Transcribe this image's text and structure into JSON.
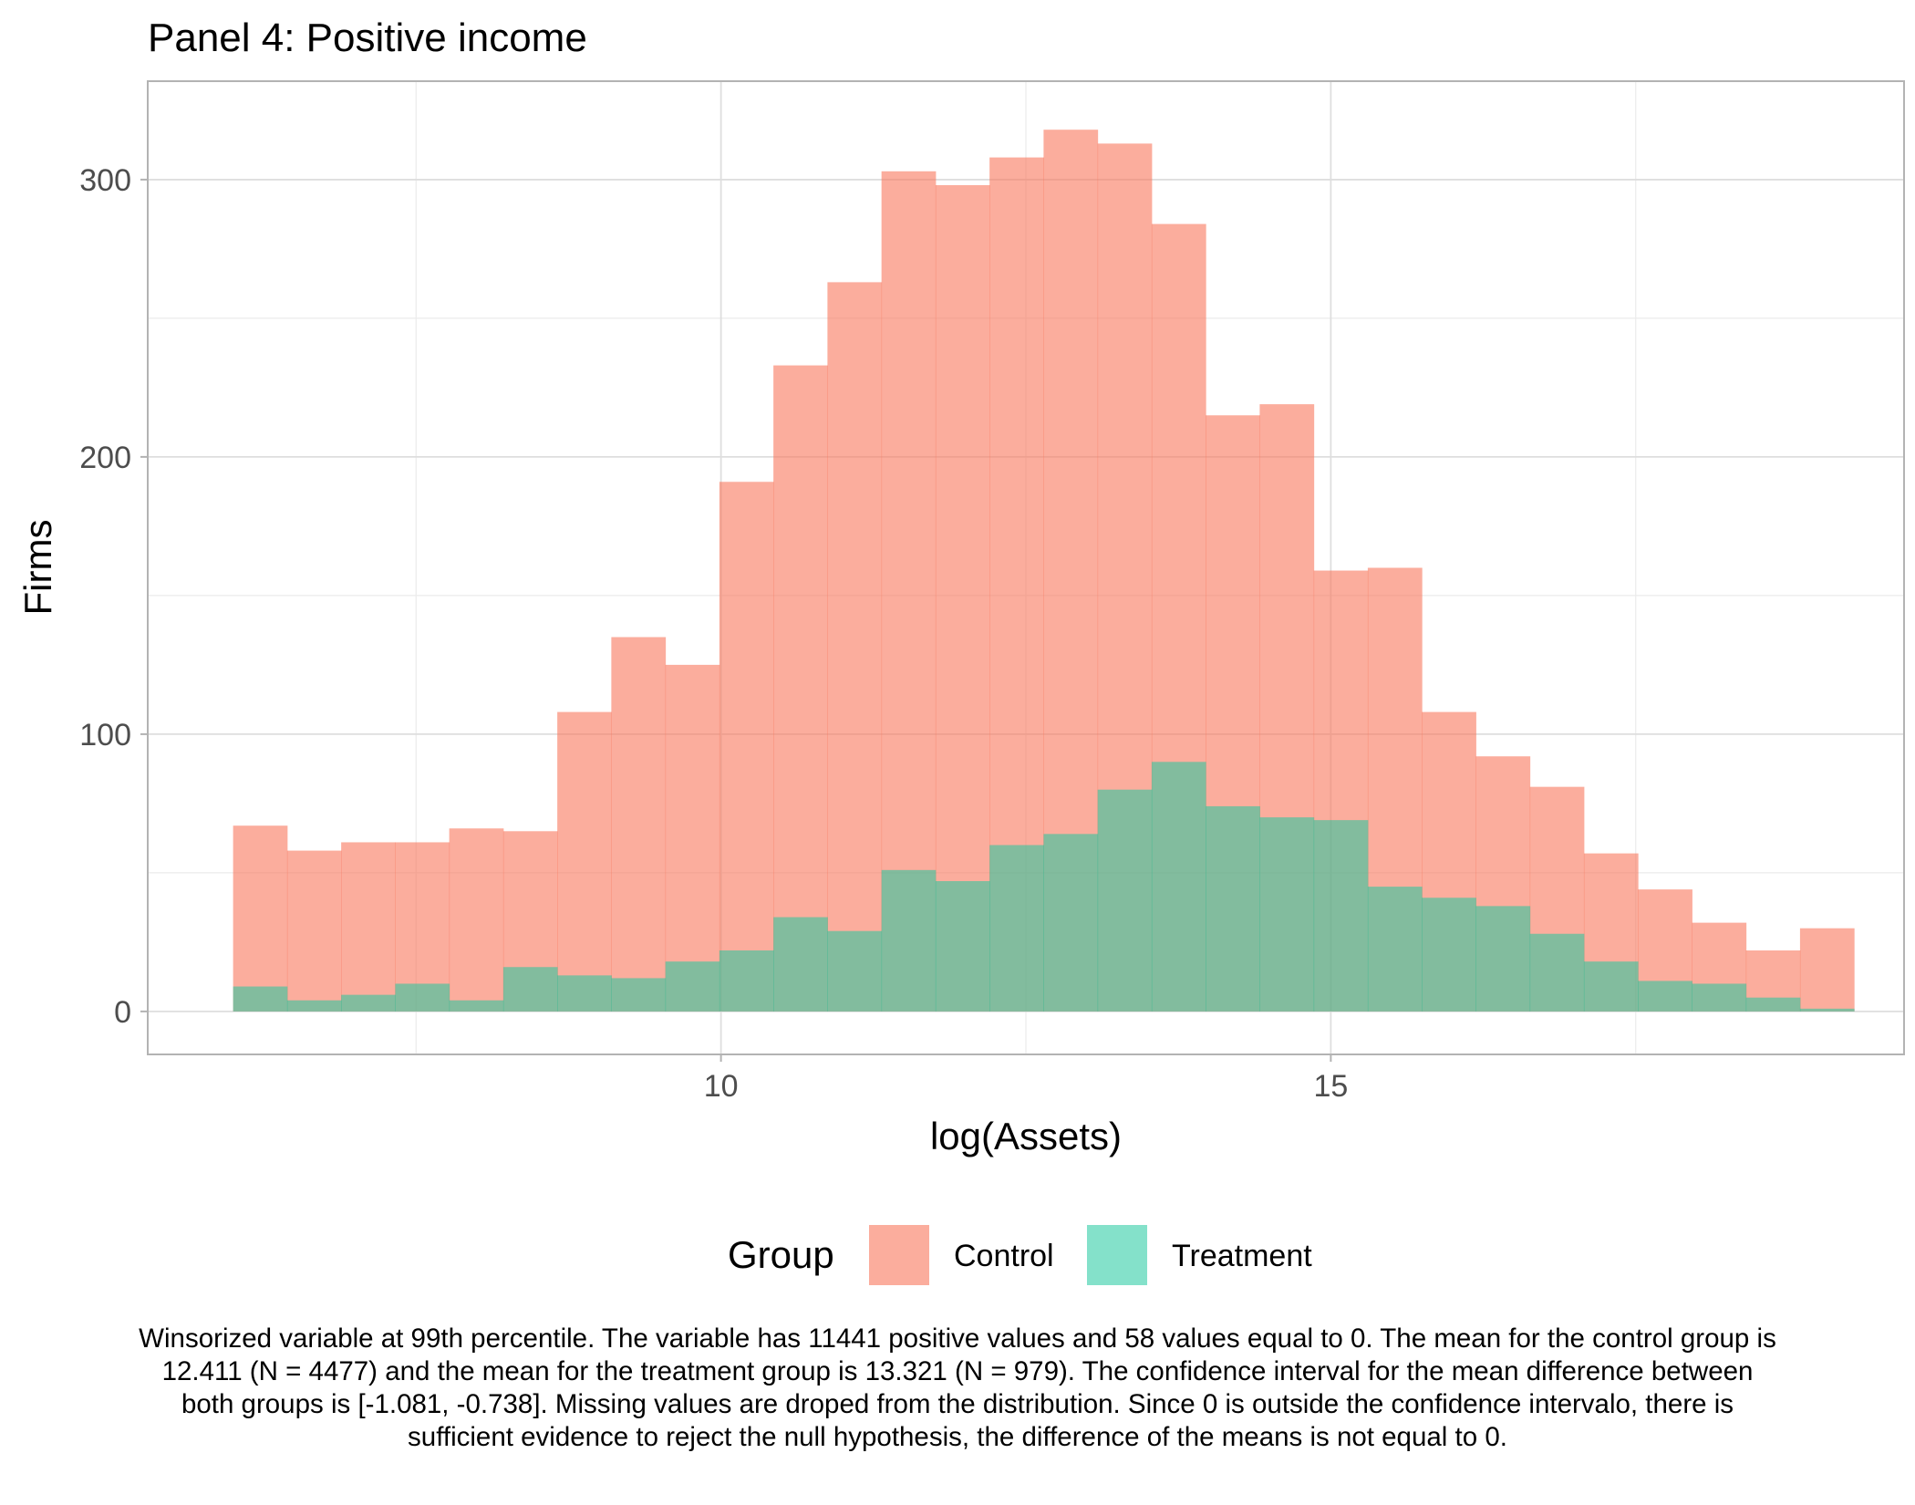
{
  "chart_data": {
    "type": "bar",
    "title": "Panel 4: Positive income",
    "xlabel": "log(Assets)",
    "ylabel": "Firms",
    "xlim": [
      5.3,
      19.7
    ],
    "ylim": [
      -15.5,
      335.5
    ],
    "x_ticks": [
      10,
      15
    ],
    "y_ticks": [
      0,
      100,
      200,
      300
    ],
    "bin_width": 0.443,
    "bin_starts": [
      6.0,
      6.443,
      6.886,
      7.329,
      7.772,
      8.215,
      8.658,
      9.101,
      9.544,
      9.987,
      10.43,
      10.873,
      11.316,
      11.759,
      12.202,
      12.645,
      13.088,
      13.531,
      13.974,
      14.417,
      14.86,
      15.303,
      15.746,
      16.189,
      16.632,
      17.075,
      17.518,
      17.961,
      18.404,
      18.847,
      19.29
    ],
    "series": [
      {
        "name": "Control",
        "color": "#F8765C",
        "values": [
          67,
          58,
          61,
          61,
          66,
          65,
          108,
          135,
          125,
          191,
          233,
          263,
          303,
          298,
          308,
          318,
          313,
          284,
          215,
          219,
          159,
          160,
          108,
          92,
          81,
          57,
          44,
          32,
          22,
          30,
          0
        ]
      },
      {
        "name": "Treatment",
        "color": "#1FC99E",
        "values": [
          9,
          4,
          6,
          10,
          4,
          16,
          13,
          12,
          18,
          22,
          34,
          29,
          51,
          47,
          60,
          64,
          80,
          90,
          74,
          70,
          69,
          45,
          41,
          38,
          28,
          18,
          11,
          10,
          5,
          1,
          0
        ]
      }
    ],
    "grid": true,
    "legend_position": "bottom",
    "legend_title": "Group"
  },
  "caption": "Winsorized variable at 99th percentile. The variable has 11441 positive values and 58 values equal to 0. The mean for the control group is 12.411 (N = 4477) and the mean for the treatment group is 13.321 (N = 979). The confidence interval for the mean difference between both groups is [-1.081, -0.738]. Missing values are droped from the distribution. Since 0 is outside the confidence intervalo, there is sufficient evidence to reject the null hypothesis, the difference of the means is not equal to 0."
}
